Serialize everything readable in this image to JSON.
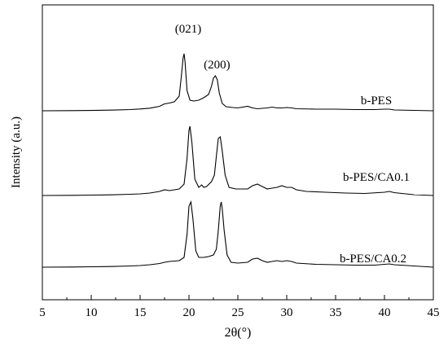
{
  "chart_data": {
    "type": "line",
    "title": "",
    "xlabel": "2θ(°)",
    "ylabel": "Intensity (a.u.)",
    "xlim": [
      5,
      45
    ],
    "xticks": [
      "5",
      "10",
      "15",
      "20",
      "25",
      "30",
      "35",
      "40",
      "45"
    ],
    "yticks": [],
    "grid": false,
    "legend": "none",
    "line_color": "#000000",
    "peak_labels": [
      {
        "text": "(021)",
        "x": 19.5
      },
      {
        "text": "(200)",
        "x": 22.7
      }
    ],
    "series": [
      {
        "name": "b-PES",
        "x": [
          5,
          8,
          10,
          12,
          14,
          15,
          16,
          17,
          17.5,
          18,
          18.5,
          19,
          19.2,
          19.4,
          19.5,
          19.6,
          19.8,
          20.1,
          20.5,
          21,
          21.5,
          22,
          22.3,
          22.5,
          22.7,
          22.9,
          23.1,
          23.4,
          23.8,
          24.5,
          25,
          26,
          26.5,
          27,
          28,
          28.5,
          29,
          29.5,
          30,
          30.5,
          31,
          33,
          35,
          37,
          39,
          40,
          40.5,
          41,
          43,
          45
        ],
        "y": [
          0,
          0.2,
          0.4,
          0.8,
          1.5,
          2.2,
          3.2,
          5.5,
          8.5,
          9.5,
          11,
          18,
          40,
          65,
          70,
          60,
          25,
          13,
          12,
          13,
          16,
          20,
          30,
          40,
          43,
          38,
          22,
          9,
          5,
          4,
          3.5,
          5.5,
          3.5,
          2.5,
          3.5,
          4.5,
          3.5,
          3.5,
          4,
          3.5,
          2.5,
          2,
          2,
          1.5,
          1.5,
          2,
          2,
          1,
          0.5,
          0
        ]
      },
      {
        "name": "b-PES/CA0.1",
        "x": [
          5,
          8,
          10,
          12,
          14,
          15,
          16,
          17,
          17.5,
          18,
          19,
          19.5,
          19.8,
          20.0,
          20.1,
          20.3,
          20.6,
          21,
          21.3,
          21.5,
          21.8,
          22.3,
          22.6,
          22.8,
          23.0,
          23.2,
          23.4,
          23.7,
          24.1,
          24.8,
          25.5,
          26,
          26.5,
          27,
          27.5,
          28,
          28.5,
          29,
          29.5,
          30,
          30.5,
          31,
          32,
          34,
          36,
          38,
          40,
          40.5,
          41,
          43,
          45
        ],
        "y": [
          0,
          0.2,
          0.5,
          0.8,
          1.5,
          2,
          3,
          5,
          7,
          6,
          8,
          14,
          45,
          80,
          85,
          65,
          20,
          10,
          13,
          10,
          11,
          17,
          25,
          48,
          70,
          72,
          55,
          25,
          10,
          8,
          8,
          8,
          12,
          14,
          11,
          8,
          9,
          10,
          12,
          10,
          10,
          7,
          5,
          4,
          3,
          2.5,
          4,
          5,
          3.5,
          1,
          0
        ]
      },
      {
        "name": "b-PES/CA0.2",
        "x": [
          5,
          8,
          10,
          12,
          14,
          15,
          16,
          17,
          17.5,
          18,
          19,
          19.5,
          19.8,
          20.0,
          20.2,
          20.4,
          20.7,
          21,
          21.5,
          22,
          22.5,
          22.8,
          23.0,
          23.2,
          23.3,
          23.4,
          23.6,
          23.9,
          24.3,
          25,
          26,
          26.5,
          27,
          27.5,
          28,
          28.5,
          29,
          29.5,
          30,
          30.5,
          31,
          33,
          35,
          37,
          39,
          40,
          40.5,
          41,
          43,
          45
        ],
        "y": [
          0,
          0.2,
          0.5,
          0.8,
          1.5,
          2,
          3,
          4.5,
          6,
          7,
          8,
          12,
          40,
          75,
          80,
          60,
          20,
          12,
          12,
          13,
          15,
          22,
          45,
          75,
          80,
          72,
          45,
          15,
          6,
          5,
          6,
          10,
          11,
          8,
          6,
          7,
          8,
          7,
          8,
          7,
          5,
          3.5,
          3,
          2.5,
          2.5,
          3.5,
          4,
          3,
          1.5,
          0
        ]
      }
    ]
  }
}
